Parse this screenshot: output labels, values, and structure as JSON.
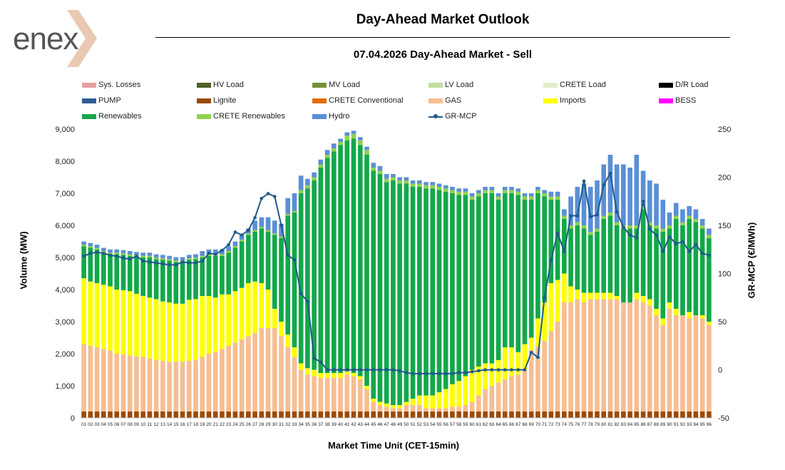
{
  "header": {
    "logo_text": "enex",
    "title": "Day-Ahead Market Outlook",
    "subtitle": "07.04.2026  Day-Ahead Market - Sell"
  },
  "legend": [
    {
      "label": "Sys. Losses",
      "color": "#e6a0a0",
      "kind": "bar"
    },
    {
      "label": "HV Load",
      "color": "#4f6228",
      "kind": "bar"
    },
    {
      "label": "MV Load",
      "color": "#76923c",
      "kind": "bar"
    },
    {
      "label": "LV Load",
      "color": "#c3dea0",
      "kind": "bar"
    },
    {
      "label": "CRETE Load",
      "color": "#e0ecc8",
      "kind": "bar"
    },
    {
      "label": "D/R Load",
      "color": "#000000",
      "kind": "bar"
    },
    {
      "label": "PUMP",
      "color": "#2e5b96",
      "kind": "bar"
    },
    {
      "label": "Lignite",
      "color": "#9c4a06",
      "kind": "bar"
    },
    {
      "label": "CRETE Conventional",
      "color": "#e46c0a",
      "kind": "bar"
    },
    {
      "label": "GAS",
      "color": "#f6be93",
      "kind": "bar"
    },
    {
      "label": "Imports",
      "color": "#ffff00",
      "kind": "bar"
    },
    {
      "label": "BESS",
      "color": "#ff00ff",
      "kind": "bar"
    },
    {
      "label": "Renewables",
      "color": "#13a84a",
      "kind": "bar"
    },
    {
      "label": "CRETE Renewables",
      "color": "#92d050",
      "kind": "bar"
    },
    {
      "label": "Hydro",
      "color": "#5b8fd6",
      "kind": "bar"
    },
    {
      "label": "GR-MCP",
      "color": "#1f5a8a",
      "kind": "line"
    }
  ],
  "chart_data": {
    "type": "bar",
    "stacked": true,
    "xlabel": "Market Time Unit (CET-15min)",
    "ylabel": "Volume (MW)",
    "y2label": "GR-MCP (€/MWh)",
    "ylim": [
      0,
      9000
    ],
    "y2lim": [
      -50,
      250
    ],
    "y_ticks": [
      "0",
      "1,000",
      "2,000",
      "3,000",
      "4,000",
      "5,000",
      "6,000",
      "7,000",
      "8,000",
      "9,000"
    ],
    "y2_ticks": [
      "-50",
      "0",
      "50",
      "100",
      "150",
      "200",
      "250"
    ],
    "categories": [
      "01",
      "02",
      "03",
      "04",
      "05",
      "06",
      "07",
      "08",
      "09",
      "10",
      "11",
      "12",
      "13",
      "14",
      "15",
      "16",
      "17",
      "18",
      "19",
      "20",
      "21",
      "22",
      "23",
      "24",
      "25",
      "26",
      "27",
      "28",
      "29",
      "30",
      "31",
      "32",
      "33",
      "34",
      "35",
      "36",
      "37",
      "38",
      "39",
      "40",
      "41",
      "42",
      "43",
      "44",
      "45",
      "46",
      "47",
      "48",
      "49",
      "50",
      "51",
      "52",
      "53",
      "54",
      "55",
      "56",
      "57",
      "58",
      "59",
      "60",
      "61",
      "62",
      "63",
      "64",
      "65",
      "66",
      "67",
      "68",
      "69",
      "70",
      "71",
      "72",
      "73",
      "74",
      "75",
      "76",
      "77",
      "78",
      "79",
      "80",
      "81",
      "82",
      "83",
      "84",
      "85",
      "86",
      "87",
      "88",
      "89",
      "90",
      "91",
      "92",
      "93",
      "94",
      "95",
      "96"
    ],
    "series": [
      {
        "name": "Lignite",
        "color": "#9c4a06",
        "values": [
          200,
          200,
          200,
          200,
          200,
          200,
          200,
          200,
          200,
          200,
          200,
          200,
          200,
          200,
          200,
          200,
          200,
          200,
          200,
          200,
          200,
          200,
          200,
          200,
          200,
          200,
          200,
          200,
          200,
          200,
          200,
          200,
          200,
          200,
          200,
          200,
          200,
          200,
          200,
          200,
          200,
          200,
          200,
          200,
          200,
          200,
          200,
          200,
          200,
          200,
          200,
          200,
          200,
          200,
          200,
          200,
          200,
          200,
          200,
          200,
          200,
          200,
          200,
          200,
          200,
          200,
          200,
          200,
          200,
          200,
          200,
          200,
          200,
          200,
          200,
          200,
          200,
          200,
          200,
          200,
          200,
          200,
          200,
          200,
          200,
          200,
          200,
          200,
          200,
          200,
          200,
          200,
          200,
          200,
          200,
          200
        ]
      },
      {
        "name": "GAS",
        "color": "#f6be93",
        "values": [
          2100,
          2050,
          2000,
          1950,
          1900,
          1800,
          1780,
          1750,
          1720,
          1700,
          1650,
          1600,
          1580,
          1550,
          1560,
          1560,
          1580,
          1600,
          1700,
          1800,
          1850,
          1950,
          2050,
          2150,
          2250,
          2350,
          2450,
          2600,
          2600,
          2600,
          2350,
          2000,
          1700,
          1300,
          1150,
          1100,
          1050,
          1050,
          1050,
          1050,
          1150,
          1100,
          1000,
          700,
          300,
          200,
          150,
          100,
          100,
          200,
          200,
          200,
          100,
          100,
          100,
          100,
          150,
          150,
          200,
          300,
          500,
          700,
          800,
          900,
          1000,
          1100,
          1150,
          1300,
          1900,
          2000,
          2200,
          2500,
          2800,
          3400,
          3400,
          3500,
          3400,
          3500,
          3500,
          3500,
          3500,
          3500,
          3400,
          3400,
          3500,
          3400,
          3300,
          3000,
          2700,
          3200,
          3000,
          3000,
          2900,
          3000,
          2900,
          2700
        ]
      },
      {
        "name": "Imports",
        "color": "#ffff00",
        "values": [
          2050,
          2000,
          2000,
          2000,
          2000,
          2000,
          2000,
          2000,
          1950,
          1900,
          1900,
          1900,
          1850,
          1850,
          1800,
          1800,
          1900,
          1900,
          1900,
          1800,
          1700,
          1700,
          1600,
          1600,
          1600,
          1650,
          1600,
          1400,
          1200,
          600,
          450,
          400,
          300,
          200,
          200,
          200,
          150,
          150,
          150,
          150,
          100,
          100,
          100,
          100,
          100,
          100,
          100,
          100,
          100,
          100,
          200,
          300,
          400,
          400,
          500,
          600,
          700,
          800,
          900,
          1000,
          900,
          800,
          700,
          700,
          1000,
          900,
          700,
          800,
          400,
          900,
          1200,
          1500,
          1300,
          900,
          500,
          300,
          300,
          200,
          200,
          200,
          200,
          100,
          0,
          0,
          200,
          200,
          200,
          200,
          200,
          200,
          200,
          0,
          200,
          0,
          100,
          100
        ]
      },
      {
        "name": "Renewables",
        "color": "#13a84a",
        "values": [
          1000,
          1050,
          1050,
          1000,
          1000,
          1100,
          1100,
          1100,
          1150,
          1200,
          1250,
          1250,
          1300,
          1300,
          1300,
          1300,
          1250,
          1250,
          1200,
          1250,
          1300,
          1200,
          1300,
          1350,
          1450,
          1500,
          1550,
          1700,
          1800,
          2300,
          2600,
          3700,
          4200,
          5300,
          5600,
          5900,
          6400,
          6700,
          6900,
          7100,
          7200,
          7300,
          7200,
          7200,
          7100,
          7100,
          6900,
          7000,
          6900,
          6800,
          6600,
          6500,
          6450,
          6450,
          6300,
          6150,
          5950,
          5800,
          5650,
          5300,
          5300,
          5300,
          5300,
          5000,
          4800,
          4800,
          4900,
          4500,
          4300,
          3900,
          3300,
          2600,
          2500,
          1700,
          1800,
          2000,
          2000,
          1800,
          1900,
          2300,
          2400,
          2200,
          2300,
          2300,
          2000,
          2700,
          2300,
          2500,
          2700,
          2300,
          2800,
          2800,
          2900,
          2900,
          2700,
          2600
        ]
      },
      {
        "name": "CRETE Renewables",
        "color": "#92d050",
        "values": [
          50,
          50,
          50,
          50,
          50,
          50,
          50,
          50,
          50,
          50,
          50,
          50,
          50,
          50,
          50,
          50,
          50,
          50,
          50,
          50,
          50,
          50,
          50,
          50,
          50,
          50,
          50,
          50,
          50,
          50,
          50,
          50,
          50,
          100,
          100,
          100,
          100,
          100,
          100,
          100,
          150,
          150,
          150,
          150,
          100,
          100,
          100,
          100,
          100,
          100,
          100,
          100,
          100,
          100,
          100,
          100,
          100,
          100,
          100,
          100,
          100,
          100,
          100,
          100,
          100,
          100,
          100,
          100,
          100,
          100,
          100,
          100,
          100,
          100,
          100,
          100,
          100,
          100,
          100,
          100,
          100,
          100,
          100,
          100,
          100,
          100,
          100,
          100,
          100,
          100,
          100,
          100,
          100,
          100,
          100,
          100
        ]
      },
      {
        "name": "Hydro",
        "color": "#5b8fd6",
        "values": [
          100,
          100,
          100,
          100,
          100,
          100,
          100,
          100,
          100,
          100,
          100,
          100,
          100,
          100,
          100,
          100,
          100,
          100,
          150,
          150,
          150,
          150,
          150,
          150,
          150,
          150,
          300,
          300,
          400,
          400,
          400,
          500,
          550,
          450,
          200,
          150,
          150,
          150,
          150,
          100,
          100,
          100,
          100,
          100,
          150,
          150,
          150,
          100,
          100,
          100,
          100,
          100,
          100,
          100,
          100,
          100,
          100,
          100,
          100,
          100,
          100,
          100,
          100,
          100,
          100,
          100,
          100,
          100,
          100,
          100,
          100,
          150,
          150,
          200,
          900,
          1100,
          1300,
          1400,
          1500,
          1600,
          1800,
          1800,
          1900,
          1800,
          2200,
          1100,
          1300,
          1300,
          900,
          400,
          400,
          400,
          300,
          300,
          200,
          200
        ]
      }
    ],
    "line": {
      "name": "GR-MCP",
      "color": "#1f5a8a",
      "axis": "right",
      "values": [
        118,
        121,
        122,
        121,
        119,
        118,
        116,
        115,
        118,
        113,
        112,
        111,
        110,
        109,
        109,
        112,
        111,
        111,
        113,
        121,
        120,
        124,
        130,
        143,
        140,
        145,
        158,
        178,
        183,
        180,
        150,
        119,
        114,
        79,
        71,
        12,
        8,
        0,
        0,
        0,
        0,
        0,
        0,
        0,
        0,
        0,
        0,
        0,
        -1,
        -3,
        -4,
        -4,
        -4,
        -4,
        -4,
        -4,
        -4,
        -3,
        -3,
        -2,
        -1,
        0,
        0,
        0,
        0,
        0,
        0,
        0,
        18,
        13,
        75,
        114,
        142,
        123,
        160,
        160,
        196,
        159,
        161,
        192,
        204,
        164,
        148,
        140,
        137,
        175,
        146,
        140,
        123,
        138,
        131,
        133,
        123,
        130,
        121,
        119
      ]
    }
  }
}
